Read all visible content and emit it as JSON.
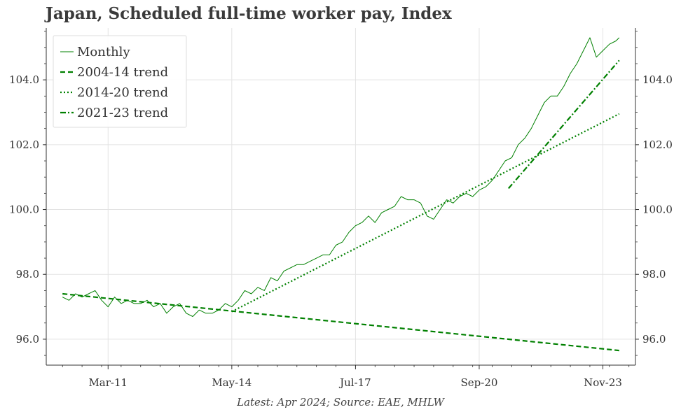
{
  "title": "Japan, Scheduled full-time worker pay, Index",
  "source": "Latest: Apr 2024; Source: EAE, MHLW",
  "chart_data": {
    "type": "line",
    "title": "Japan, Scheduled full-time worker pay, Index",
    "xlabel": "",
    "ylabel": "",
    "x_ticks": [
      "Mar-11",
      "May-14",
      "Jul-17",
      "Sep-20",
      "Nov-23"
    ],
    "y_ticks": [
      "96.0",
      "98.0",
      "100.0",
      "102.0",
      "104.0"
    ],
    "xlim": [
      "2009-08",
      "2024-09"
    ],
    "ylim": [
      95.2,
      105.6
    ],
    "grid": true,
    "legend_position": "top-left",
    "color": "#008000",
    "series": [
      {
        "name": "Monthly",
        "style": "solid",
        "x": [
          "2010-01",
          "2010-03",
          "2010-05",
          "2010-07",
          "2010-09",
          "2010-11",
          "2011-01",
          "2011-03",
          "2011-05",
          "2011-07",
          "2011-09",
          "2011-11",
          "2012-01",
          "2012-03",
          "2012-05",
          "2012-07",
          "2012-09",
          "2012-11",
          "2013-01",
          "2013-03",
          "2013-05",
          "2013-07",
          "2013-09",
          "2013-11",
          "2014-01",
          "2014-03",
          "2014-05",
          "2014-07",
          "2014-09",
          "2014-11",
          "2015-01",
          "2015-03",
          "2015-05",
          "2015-07",
          "2015-09",
          "2015-11",
          "2016-01",
          "2016-03",
          "2016-05",
          "2016-07",
          "2016-09",
          "2016-11",
          "2017-01",
          "2017-03",
          "2017-05",
          "2017-07",
          "2017-09",
          "2017-11",
          "2018-01",
          "2018-03",
          "2018-05",
          "2018-07",
          "2018-09",
          "2018-11",
          "2019-01",
          "2019-03",
          "2019-05",
          "2019-07",
          "2019-09",
          "2019-11",
          "2020-01",
          "2020-03",
          "2020-05",
          "2020-07",
          "2020-09",
          "2020-11",
          "2021-01",
          "2021-03",
          "2021-05",
          "2021-07",
          "2021-09",
          "2021-11",
          "2022-01",
          "2022-03",
          "2022-05",
          "2022-07",
          "2022-09",
          "2022-11",
          "2023-01",
          "2023-03",
          "2023-05",
          "2023-07",
          "2023-09",
          "2023-11",
          "2024-01",
          "2024-03",
          "2024-04"
        ],
        "values": [
          97.3,
          97.2,
          97.4,
          97.3,
          97.4,
          97.5,
          97.2,
          97.0,
          97.3,
          97.1,
          97.2,
          97.1,
          97.1,
          97.2,
          97.0,
          97.1,
          96.8,
          97.0,
          97.1,
          96.8,
          96.7,
          96.9,
          96.8,
          96.8,
          96.9,
          97.1,
          97.0,
          97.2,
          97.5,
          97.4,
          97.6,
          97.5,
          97.9,
          97.8,
          98.1,
          98.2,
          98.3,
          98.3,
          98.4,
          98.5,
          98.6,
          98.6,
          98.9,
          99.0,
          99.3,
          99.5,
          99.6,
          99.8,
          99.6,
          99.9,
          100.0,
          100.1,
          100.4,
          100.3,
          100.3,
          100.2,
          99.8,
          99.7,
          100.0,
          100.3,
          100.2,
          100.4,
          100.5,
          100.4,
          100.6,
          100.7,
          100.9,
          101.2,
          101.5,
          101.6,
          102.0,
          102.2,
          102.5,
          102.9,
          103.3,
          103.5,
          103.5,
          103.8,
          104.2,
          104.5,
          104.9,
          105.3,
          104.7,
          104.9,
          105.1,
          105.2,
          105.3
        ]
      },
      {
        "name": "2004-14 trend",
        "style": "dashed",
        "x": [
          "2010-01",
          "2024-04"
        ],
        "values": [
          97.4,
          95.65
        ]
      },
      {
        "name": "2014-20 trend",
        "style": "dotted",
        "x": [
          "2014-05",
          "2024-04"
        ],
        "values": [
          96.85,
          102.95
        ]
      },
      {
        "name": "2021-23 trend",
        "style": "dashdot",
        "x": [
          "2021-06",
          "2024-04"
        ],
        "values": [
          100.65,
          104.6
        ]
      }
    ]
  }
}
